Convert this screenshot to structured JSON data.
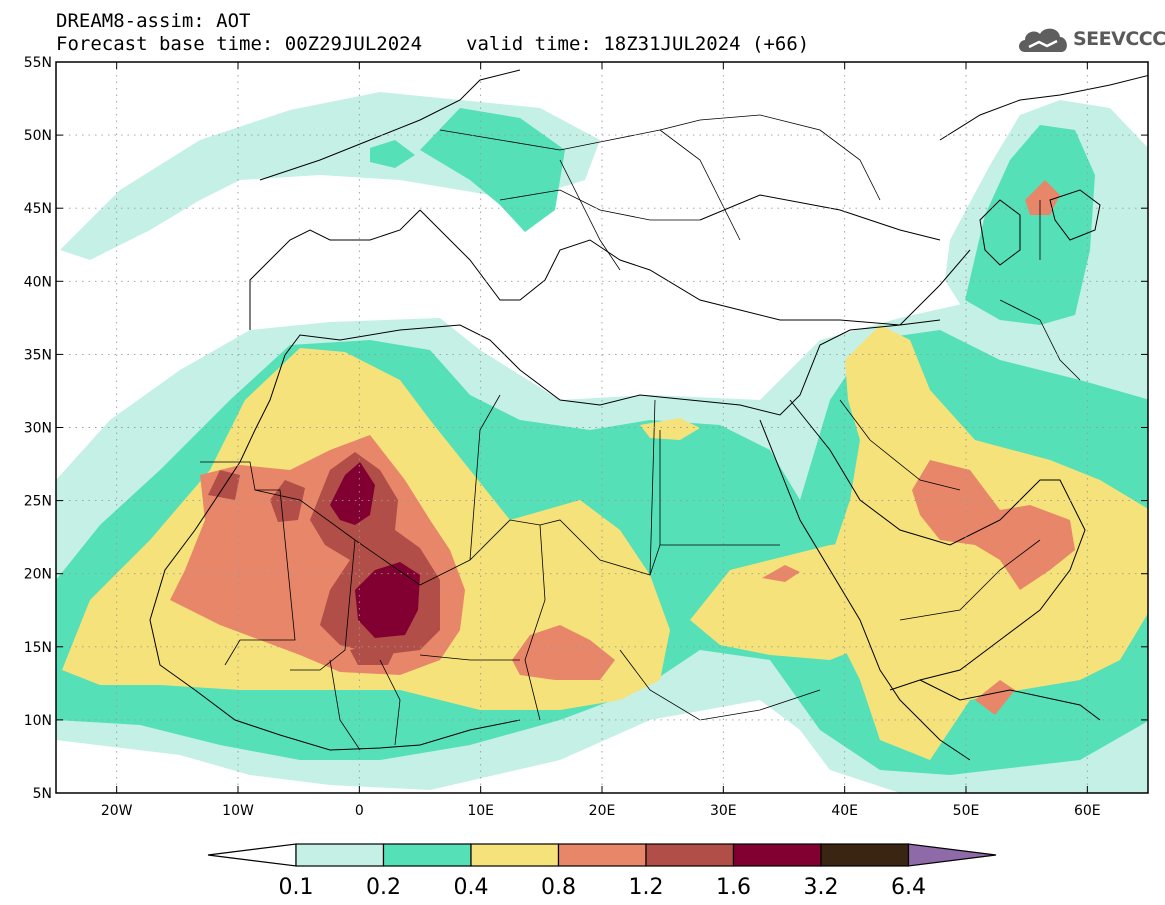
{
  "header": {
    "line1": "DREAM8-assim: AOT",
    "base_time": "Forecast base time: 00Z29JUL2024",
    "valid_time": "valid time: 18Z31JUL2024 (+66)",
    "logo_text": "SEEVCCC"
  },
  "axes": {
    "lon_ticks": [
      "20W",
      "10W",
      "0",
      "10E",
      "20E",
      "30E",
      "40E",
      "50E",
      "60E"
    ],
    "lat_ticks": [
      "55N",
      "50N",
      "45N",
      "40N",
      "35N",
      "30N",
      "25N",
      "20N",
      "15N",
      "10N",
      "5N"
    ],
    "lon_range": [
      -25,
      65
    ],
    "lat_range": [
      5,
      55
    ]
  },
  "colorbar": {
    "labels": [
      "0.1",
      "0.2",
      "0.4",
      "0.8",
      "1.2",
      "1.6",
      "3.2",
      "6.4"
    ],
    "colors": [
      "#c4f0e6",
      "#55e0b8",
      "#f5e27a",
      "#e8866a",
      "#b04e47",
      "#820031",
      "#3a2412",
      "#8e6aa8"
    ]
  }
}
